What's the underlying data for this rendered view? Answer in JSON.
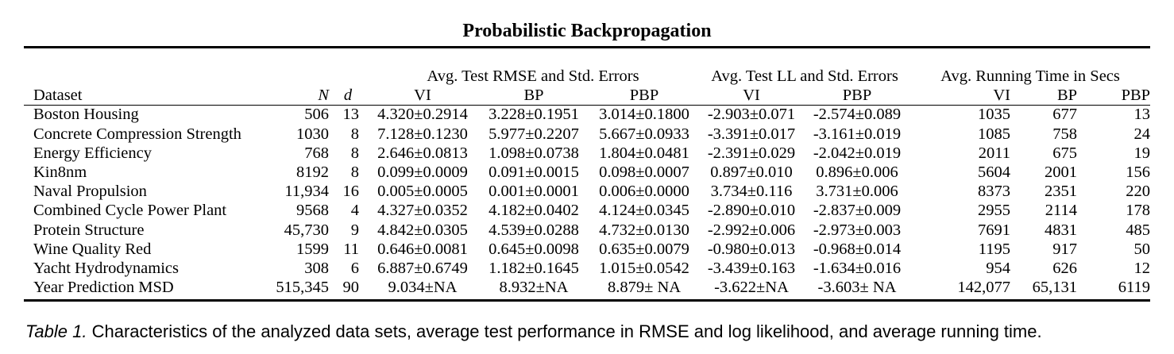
{
  "title": "Probabilistic Backpropagation",
  "group_headers": {
    "rmse": "Avg. Test RMSE and Std. Errors",
    "ll": "Avg. Test LL and Std. Errors",
    "time": "Avg. Running Time in Secs"
  },
  "columns": {
    "dataset": "Dataset",
    "n": "N",
    "d": "d",
    "rmse_vi": "VI",
    "rmse_bp": "BP",
    "rmse_pbp": "PBP",
    "ll_vi": "VI",
    "ll_pbp": "PBP",
    "time_vi": "VI",
    "time_bp": "BP",
    "time_pbp": "PBP"
  },
  "rows": [
    {
      "dataset": "Boston Housing",
      "n": "506",
      "d": "13",
      "rmse_vi": "4.320±0.2914",
      "rmse_bp": "3.228±0.1951",
      "rmse_pbp": "3.014±0.1800",
      "ll_vi": "-2.903±0.071",
      "ll_pbp": "-2.574±0.089",
      "time_vi": "1035",
      "time_bp": "677",
      "time_pbp": "13"
    },
    {
      "dataset": "Concrete Compression Strength",
      "n": "1030",
      "d": "8",
      "rmse_vi": "7.128±0.1230",
      "rmse_bp": "5.977±0.2207",
      "rmse_pbp": "5.667±0.0933",
      "ll_vi": "-3.391±0.017",
      "ll_pbp": "-3.161±0.019",
      "time_vi": "1085",
      "time_bp": "758",
      "time_pbp": "24"
    },
    {
      "dataset": "Energy Efficiency",
      "n": "768",
      "d": "8",
      "rmse_vi": "2.646±0.0813",
      "rmse_bp": "1.098±0.0738",
      "rmse_pbp": "1.804±0.0481",
      "ll_vi": "-2.391±0.029",
      "ll_pbp": "-2.042±0.019",
      "time_vi": "2011",
      "time_bp": "675",
      "time_pbp": "19"
    },
    {
      "dataset": "Kin8nm",
      "n": "8192",
      "d": "8",
      "rmse_vi": "0.099±0.0009",
      "rmse_bp": "0.091±0.0015",
      "rmse_pbp": "0.098±0.0007",
      "ll_vi": "0.897±0.010",
      "ll_pbp": "0.896±0.006",
      "time_vi": "5604",
      "time_bp": "2001",
      "time_pbp": "156"
    },
    {
      "dataset": "Naval Propulsion",
      "n": "11,934",
      "d": "16",
      "rmse_vi": "0.005±0.0005",
      "rmse_bp": "0.001±0.0001",
      "rmse_pbp": "0.006±0.0000",
      "ll_vi": "3.734±0.116",
      "ll_pbp": "3.731±0.006",
      "time_vi": "8373",
      "time_bp": "2351",
      "time_pbp": "220"
    },
    {
      "dataset": "Combined Cycle Power Plant",
      "n": "9568",
      "d": "4",
      "rmse_vi": "4.327±0.0352",
      "rmse_bp": "4.182±0.0402",
      "rmse_pbp": "4.124±0.0345",
      "ll_vi": "-2.890±0.010",
      "ll_pbp": "-2.837±0.009",
      "time_vi": "2955",
      "time_bp": "2114",
      "time_pbp": "178"
    },
    {
      "dataset": "Protein Structure",
      "n": "45,730",
      "d": "9",
      "rmse_vi": "4.842±0.0305",
      "rmse_bp": "4.539±0.0288",
      "rmse_pbp": "4.732±0.0130",
      "ll_vi": "-2.992±0.006",
      "ll_pbp": "-2.973±0.003",
      "time_vi": "7691",
      "time_bp": "4831",
      "time_pbp": "485"
    },
    {
      "dataset": "Wine Quality Red",
      "n": "1599",
      "d": "11",
      "rmse_vi": "0.646±0.0081",
      "rmse_bp": "0.645±0.0098",
      "rmse_pbp": "0.635±0.0079",
      "ll_vi": "-0.980±0.013",
      "ll_pbp": "-0.968±0.014",
      "time_vi": "1195",
      "time_bp": "917",
      "time_pbp": "50"
    },
    {
      "dataset": "Yacht Hydrodynamics",
      "n": "308",
      "d": "6",
      "rmse_vi": "6.887±0.6749",
      "rmse_bp": "1.182±0.1645",
      "rmse_pbp": "1.015±0.0542",
      "ll_vi": "-3.439±0.163",
      "ll_pbp": "-1.634±0.016",
      "time_vi": "954",
      "time_bp": "626",
      "time_pbp": "12"
    },
    {
      "dataset": "Year Prediction MSD",
      "n": "515,345",
      "d": "90",
      "rmse_vi": "9.034±NA",
      "rmse_bp": "8.932±NA",
      "rmse_pbp": "8.879± NA",
      "ll_vi": "-3.622±NA",
      "ll_pbp": "-3.603± NA",
      "time_vi": "142,077",
      "time_bp": "65,131",
      "time_pbp": "6119"
    }
  ],
  "bold_cells": [
    [
      0,
      "rmse_pbp"
    ],
    [
      0,
      "ll_pbp"
    ],
    [
      0,
      "time_pbp"
    ],
    [
      1,
      "rmse_pbp"
    ],
    [
      1,
      "ll_pbp"
    ],
    [
      1,
      "time_pbp"
    ],
    [
      2,
      "rmse_bp"
    ],
    [
      2,
      "ll_pbp"
    ],
    [
      2,
      "time_pbp"
    ],
    [
      3,
      "rmse_bp"
    ],
    [
      3,
      "ll_vi"
    ],
    [
      3,
      "time_pbp"
    ],
    [
      4,
      "rmse_bp"
    ],
    [
      4,
      "ll_vi"
    ],
    [
      4,
      "time_pbp"
    ],
    [
      5,
      "rmse_pbp"
    ],
    [
      5,
      "ll_pbp"
    ],
    [
      5,
      "time_pbp"
    ],
    [
      6,
      "rmse_bp"
    ],
    [
      6,
      "ll_pbp"
    ],
    [
      6,
      "time_pbp"
    ],
    [
      7,
      "rmse_pbp"
    ],
    [
      7,
      "ll_pbp"
    ],
    [
      7,
      "time_pbp"
    ],
    [
      8,
      "rmse_pbp"
    ],
    [
      8,
      "ll_pbp"
    ],
    [
      8,
      "time_pbp"
    ],
    [
      9,
      "rmse_pbp"
    ],
    [
      9,
      "ll_pbp"
    ],
    [
      9,
      "time_pbp"
    ]
  ],
  "caption": {
    "label": "Table 1.",
    "text": "Characteristics of the analyzed data sets, average test performance in RMSE and log likelihood, and average running time."
  }
}
